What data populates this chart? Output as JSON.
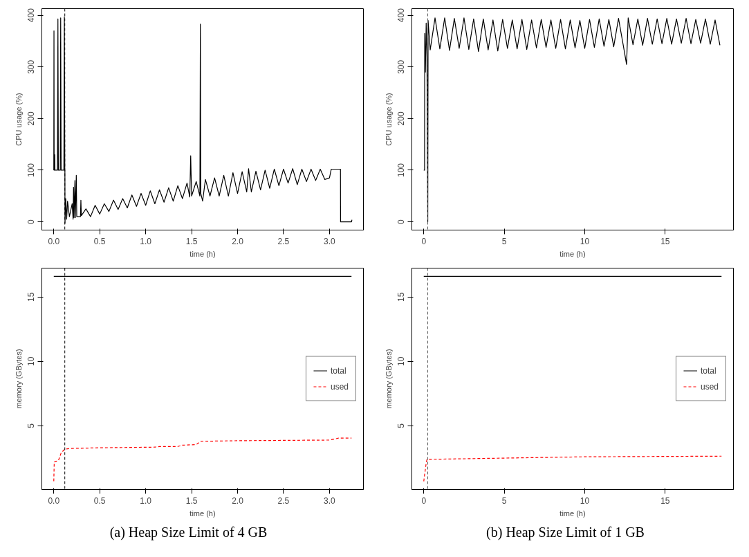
{
  "chart_data": [
    {
      "type": "line",
      "xlabel": "time (h)",
      "ylabel": "CPU usage (%)",
      "xlim": [
        -0.13,
        3.37
      ],
      "ylim": [
        -16,
        413
      ],
      "xticks": [
        {
          "value": 0,
          "label": "0.0"
        },
        0.5,
        {
          "value": 1,
          "label": "1.0"
        },
        1.5,
        {
          "value": 2,
          "label": "2.0"
        },
        2.5,
        {
          "value": 3,
          "label": "3.0"
        }
      ],
      "yticks": [
        0,
        100,
        200,
        300,
        400
      ],
      "legend": false,
      "series": [
        {
          "color": "#000000",
          "line_style": "solid",
          "x": [
            0,
            0.002,
            0.004,
            0.01,
            0.012,
            0.04,
            0.045,
            0.05,
            0.07,
            0.075,
            0.08,
            0.11,
            0.115,
            0.12,
            0.121,
            0.122,
            0.13,
            0.14,
            0.15,
            0.17,
            0.2,
            0.21,
            0.215,
            0.22,
            0.23,
            0.235,
            0.245,
            0.25,
            0.29,
            0.295,
            0.3,
            0.35,
            0.4,
            0.45,
            0.5,
            0.55,
            0.6,
            0.65,
            0.7,
            0.75,
            0.8,
            0.85,
            0.9,
            0.95,
            1.0,
            1.05,
            1.1,
            1.15,
            1.2,
            1.25,
            1.3,
            1.35,
            1.4,
            1.45,
            1.48,
            1.49,
            1.5,
            1.55,
            1.59,
            1.595,
            1.6,
            1.62,
            1.65,
            1.7,
            1.75,
            1.8,
            1.85,
            1.9,
            1.95,
            2.0,
            2.05,
            2.1,
            2.12,
            2.15,
            2.2,
            2.25,
            2.3,
            2.35,
            2.4,
            2.45,
            2.5,
            2.55,
            2.6,
            2.65,
            2.7,
            2.75,
            2.8,
            2.85,
            2.9,
            2.95,
            3.0,
            3.02,
            3.12,
            3.121,
            3.24,
            3.245
          ],
          "values": [
            100,
            370,
            100,
            130,
            100,
            100,
            393,
            100,
            100,
            395,
            100,
            100,
            397,
            100,
            100,
            -3,
            45,
            5,
            40,
            10,
            35,
            5,
            67,
            8,
            80,
            8,
            90,
            10,
            10,
            42,
            12,
            25,
            10,
            32,
            15,
            35,
            20,
            42,
            24,
            45,
            27,
            52,
            30,
            55,
            32,
            60,
            35,
            62,
            38,
            66,
            40,
            70,
            45,
            75,
            48,
            128,
            50,
            78,
            50,
            383,
            55,
            40,
            82,
            50,
            85,
            50,
            90,
            50,
            95,
            55,
            97,
            58,
            103,
            58,
            98,
            62,
            100,
            65,
            102,
            70,
            102,
            75,
            103,
            72,
            102,
            78,
            102,
            80,
            102,
            82,
            85,
            102,
            102,
            0,
            0,
            4
          ]
        }
      ],
      "ref_lines": [
        {
          "axis": "x",
          "value": 0.12,
          "line_style": "dashed",
          "color": "#000000"
        }
      ]
    },
    {
      "type": "line",
      "xlabel": "time (h)",
      "ylabel": "CPU usage (%)",
      "xlim": [
        -0.74,
        19.24
      ],
      "ylim": [
        -16,
        413
      ],
      "xticks": [
        0,
        5,
        10,
        15
      ],
      "yticks": [
        0,
        100,
        200,
        300,
        400
      ],
      "legend": false,
      "series": [
        {
          "color": "#000000",
          "line_style": "solid",
          "x": [
            0,
            0.05,
            0.06,
            0.1,
            0.15,
            0.2,
            0.25,
            0.27,
            0.4,
            0.7,
            1.0,
            1.3,
            1.6,
            1.9,
            2.2,
            2.5,
            2.8,
            3.1,
            3.4,
            3.7,
            4.0,
            4.3,
            4.6,
            4.9,
            5.2,
            5.5,
            5.8,
            6.1,
            6.4,
            6.7,
            7.0,
            7.3,
            7.6,
            7.9,
            8.2,
            8.5,
            8.8,
            9.1,
            9.4,
            9.7,
            10.0,
            10.3,
            10.6,
            10.9,
            11.2,
            11.5,
            11.8,
            12.1,
            12.4,
            12.6,
            12.7,
            13.0,
            13.3,
            13.6,
            13.9,
            14.2,
            14.5,
            14.8,
            15.1,
            15.4,
            15.7,
            16.0,
            16.3,
            16.6,
            16.9,
            17.2,
            17.5,
            17.8,
            18.1,
            18.4
          ],
          "values": [
            100,
            100,
            365,
            290,
            385,
            315,
            0,
            390,
            333,
            395,
            335,
            395,
            332,
            394,
            336,
            395,
            334,
            393,
            330,
            393,
            333,
            391,
            331,
            392,
            336,
            391,
            335,
            392,
            334,
            391,
            337,
            392,
            338,
            391,
            336,
            392,
            335,
            391,
            337,
            390,
            336,
            392,
            338,
            393,
            340,
            392,
            339,
            394,
            341,
            305,
            395,
            343,
            393,
            342,
            394,
            344,
            393,
            345,
            394,
            344,
            393,
            346,
            394,
            345,
            392,
            346,
            393,
            344,
            391,
            342
          ]
        }
      ],
      "ref_lines": [
        {
          "axis": "x",
          "value": 0.25,
          "line_style": "dashed",
          "color": "#555555"
        }
      ]
    },
    {
      "type": "line",
      "xlabel": "time (h)",
      "ylabel": "memory (GBytes)",
      "xlim": [
        -0.13,
        3.37
      ],
      "ylim": [
        0.06,
        17.24
      ],
      "xticks": [
        {
          "value": 0,
          "label": "0.0"
        },
        0.5,
        {
          "value": 1,
          "label": "1.0"
        },
        1.5,
        {
          "value": 2,
          "label": "2.0"
        },
        2.5,
        {
          "value": 3,
          "label": "3.0"
        }
      ],
      "yticks": [
        5,
        10,
        15
      ],
      "legend": "right",
      "annotations": [
        "(a) Heap Size Limit of 4 GB"
      ],
      "series": [
        {
          "name": "total",
          "color": "#000000",
          "line_style": "solid",
          "x": [
            0,
            3.24
          ],
          "values": [
            16.6,
            16.6
          ]
        },
        {
          "name": "used",
          "color": "#ff0000",
          "line_style": "dashed",
          "x": [
            0,
            0.005,
            0.05,
            0.08,
            0.12,
            0.2,
            0.5,
            1.1,
            1.15,
            1.35,
            1.4,
            1.55,
            1.6,
            2.0,
            3.0,
            3.1,
            3.24
          ],
          "values": [
            0.7,
            2.2,
            2.3,
            2.9,
            3.2,
            3.25,
            3.3,
            3.35,
            3.4,
            3.4,
            3.5,
            3.55,
            3.8,
            3.85,
            3.9,
            4.05,
            4.05
          ]
        }
      ],
      "ref_lines": [
        {
          "axis": "x",
          "value": 0.12,
          "line_style": "dashed",
          "color": "#000000"
        }
      ]
    },
    {
      "type": "line",
      "xlabel": "time (h)",
      "ylabel": "memory (GBytes)",
      "xlim": [
        -0.74,
        19.24
      ],
      "ylim": [
        0.06,
        17.24
      ],
      "xticks": [
        0,
        5,
        10,
        15
      ],
      "yticks": [
        5,
        10,
        15
      ],
      "legend": "right",
      "annotations": [
        "(b) Heap Size Limit of 1 GB"
      ],
      "series": [
        {
          "name": "total",
          "color": "#000000",
          "line_style": "solid",
          "x": [
            0,
            18.5
          ],
          "values": [
            16.6,
            16.6
          ]
        },
        {
          "name": "used",
          "color": "#ff0000",
          "line_style": "dashed",
          "x": [
            0,
            0.15,
            0.2,
            5,
            10,
            18.5
          ],
          "values": [
            0.7,
            2.1,
            2.4,
            2.5,
            2.6,
            2.65
          ]
        }
      ],
      "ref_lines": [
        {
          "axis": "x",
          "value": 0.25,
          "line_style": "dashed",
          "color": "#555555"
        }
      ]
    }
  ]
}
